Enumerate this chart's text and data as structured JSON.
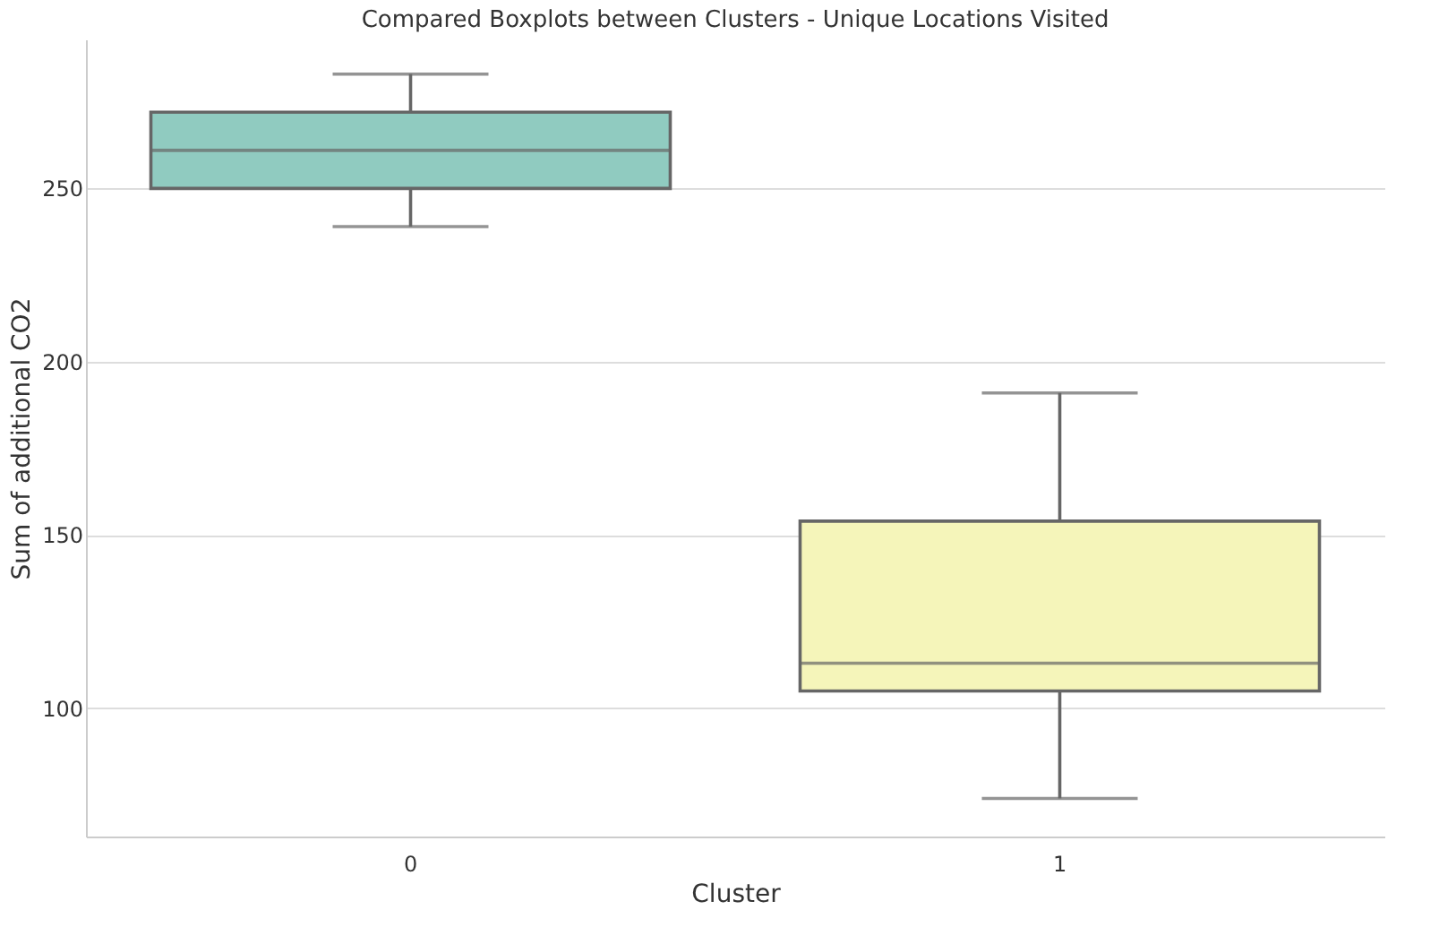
{
  "chart_data": {
    "type": "box",
    "title": "Compared Boxplots between Clusters - Unique Locations Visited",
    "xlabel": "Cluster",
    "ylabel": "Sum of additional CO2",
    "categories": [
      "0",
      "1"
    ],
    "boxes": [
      {
        "low": 239,
        "q1": 250,
        "median": 261,
        "q3": 272,
        "high": 283
      },
      {
        "low": 74,
        "q1": 105,
        "median": 113,
        "q3": 154,
        "high": 191
      }
    ],
    "colors": [
      "#90cbc0",
      "#f5f5ba"
    ],
    "ylim": [
      63,
      293
    ],
    "yticks": [
      100,
      150,
      200,
      250
    ],
    "grid": "y"
  }
}
